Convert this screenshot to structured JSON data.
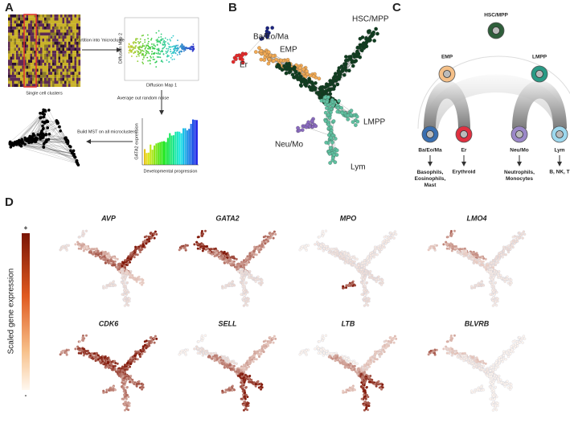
{
  "panel_a": {
    "label": "A",
    "heatmap_caption": "Single cell clusters",
    "step1": "Partition into 'microclusters'",
    "dm_y": "Diffusion Map 2",
    "dm_x": "Diffusion Map 1",
    "step2": "Average out random noise",
    "bar_y": "GATA2 expression",
    "bar_x": "Developmental progression",
    "step3": "Build MST on all microclusters"
  },
  "panel_b": {
    "label": "B",
    "branches": {
      "hsc": "HSC/MPP",
      "ba": "Ba/Eo/Ma",
      "er": "Er",
      "emp": "EMP",
      "lmpp": "LMPP",
      "neu": "Neu/Mo",
      "lym": "Lym"
    }
  },
  "panel_c": {
    "label": "C",
    "root": "HSC/MPP",
    "emp": "EMP",
    "lmpp": "LMPP",
    "leaves": [
      {
        "name": "Ba/Eo/Ma",
        "fate": "Basophils, Eosinophils, Mast"
      },
      {
        "name": "Er",
        "fate": "Erythroid"
      },
      {
        "name": "Neu/Mo",
        "fate": "Neutrophils, Monocytes"
      },
      {
        "name": "Lym",
        "fate": "B, NK, T"
      }
    ]
  },
  "panel_d": {
    "label": "D",
    "scale_label": "Scaled gene expression",
    "scale_max": "+",
    "scale_min": "-",
    "genes": [
      "AVP",
      "GATA2",
      "MPO",
      "LMO4",
      "CDK6",
      "SELL",
      "LTB",
      "BLVRB"
    ]
  }
}
